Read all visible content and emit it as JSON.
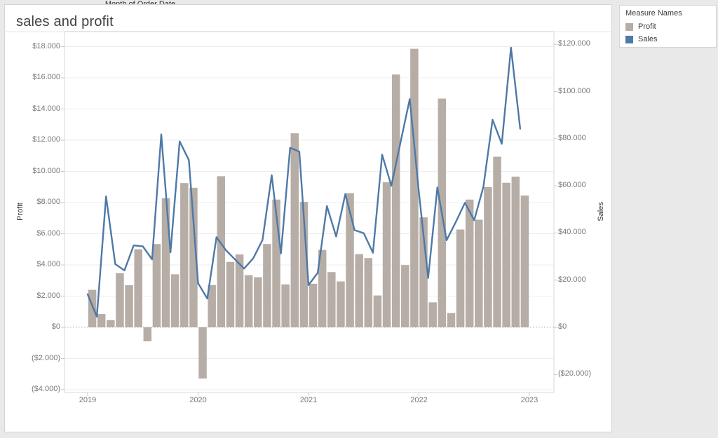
{
  "page": {
    "title": "sales and profit"
  },
  "legend": {
    "title": "Measure Names",
    "items": [
      {
        "label": "Profit",
        "color": "#b6ada6"
      },
      {
        "label": "Sales",
        "color": "#4e79a7"
      }
    ]
  },
  "axes": {
    "left": {
      "title": "Profit",
      "ticks": [
        {
          "value": -4000,
          "label": "($4.000)"
        },
        {
          "value": -2000,
          "label": "($2.000)"
        },
        {
          "value": 0,
          "label": "$0"
        },
        {
          "value": 2000,
          "label": "$2.000"
        },
        {
          "value": 4000,
          "label": "$4.000"
        },
        {
          "value": 6000,
          "label": "$6.000"
        },
        {
          "value": 8000,
          "label": "$8.000"
        },
        {
          "value": 10000,
          "label": "$10.000"
        },
        {
          "value": 12000,
          "label": "$12.000"
        },
        {
          "value": 14000,
          "label": "$14.000"
        },
        {
          "value": 16000,
          "label": "$16.000"
        },
        {
          "value": 18000,
          "label": "$18.000"
        }
      ]
    },
    "right": {
      "title": "Sales",
      "ticks": [
        {
          "value": -20000,
          "label": "($20.000)"
        },
        {
          "value": 0,
          "label": "$0"
        },
        {
          "value": 20000,
          "label": "$20.000"
        },
        {
          "value": 40000,
          "label": "$40.000"
        },
        {
          "value": 60000,
          "label": "$60.000"
        },
        {
          "value": 80000,
          "label": "$80.000"
        },
        {
          "value": 100000,
          "label": "$100.000"
        },
        {
          "value": 120000,
          "label": "$120.000"
        }
      ]
    },
    "bottom": {
      "title": "Month of Order Date",
      "years": [
        {
          "label": "2019",
          "month_index": 0
        },
        {
          "label": "2020",
          "month_index": 12
        },
        {
          "label": "2021",
          "month_index": 24
        },
        {
          "label": "2022",
          "month_index": 36
        },
        {
          "label": "2023",
          "month_index": 48
        }
      ]
    }
  },
  "chart_data": {
    "type": "combo-bar-line-dual-axis",
    "title": "sales and profit",
    "xlabel": "Month of Order Date",
    "grid": "horizontal, light; dotted line at $0",
    "legend_position": "top-right",
    "categories": [
      "2019-01",
      "2019-02",
      "2019-03",
      "2019-04",
      "2019-05",
      "2019-06",
      "2019-07",
      "2019-08",
      "2019-09",
      "2019-10",
      "2019-11",
      "2019-12",
      "2020-01",
      "2020-02",
      "2020-03",
      "2020-04",
      "2020-05",
      "2020-06",
      "2020-07",
      "2020-08",
      "2020-09",
      "2020-10",
      "2020-11",
      "2020-12",
      "2021-01",
      "2021-02",
      "2021-03",
      "2021-04",
      "2021-05",
      "2021-06",
      "2021-07",
      "2021-08",
      "2021-09",
      "2021-10",
      "2021-11",
      "2021-12",
      "2022-01",
      "2022-02",
      "2022-03",
      "2022-04",
      "2022-05",
      "2022-06",
      "2022-07",
      "2022-08",
      "2022-09",
      "2022-10",
      "2022-11",
      "2022-12"
    ],
    "series": [
      {
        "name": "Profit",
        "type": "bar",
        "axis": "left",
        "color": "#b6ada6",
        "axis_range": [
          -4000,
          18000
        ],
        "tick_step": 2000,
        "values": [
          2400,
          850,
          460,
          3470,
          2700,
          5000,
          -900,
          5340,
          8280,
          3400,
          9250,
          8950,
          -3290,
          2710,
          9690,
          4190,
          4670,
          3340,
          3210,
          5340,
          8190,
          2750,
          12440,
          8040,
          2790,
          4960,
          3540,
          2940,
          8600,
          4690,
          4440,
          2040,
          9300,
          16210,
          3990,
          17860,
          7050,
          1600,
          14670,
          910,
          6270,
          8190,
          6900,
          8990,
          10940,
          9270,
          9660,
          8450
        ]
      },
      {
        "name": "Sales",
        "type": "line",
        "axis": "right",
        "color": "#4e79a7",
        "axis_range": [
          -20000,
          120000
        ],
        "tick_step": 20000,
        "values": [
          14000,
          4500,
          55500,
          26800,
          24100,
          34700,
          34300,
          28800,
          81800,
          31800,
          78800,
          70900,
          18700,
          12200,
          38200,
          32800,
          28800,
          24900,
          29300,
          37000,
          64500,
          31300,
          76100,
          74500,
          17900,
          23100,
          51400,
          38500,
          56500,
          41200,
          39900,
          31600,
          73200,
          60000,
          78500,
          96800,
          57000,
          20900,
          59300,
          36900,
          44600,
          52800,
          45400,
          59500,
          88000,
          77800,
          118600,
          84200
        ]
      }
    ]
  }
}
